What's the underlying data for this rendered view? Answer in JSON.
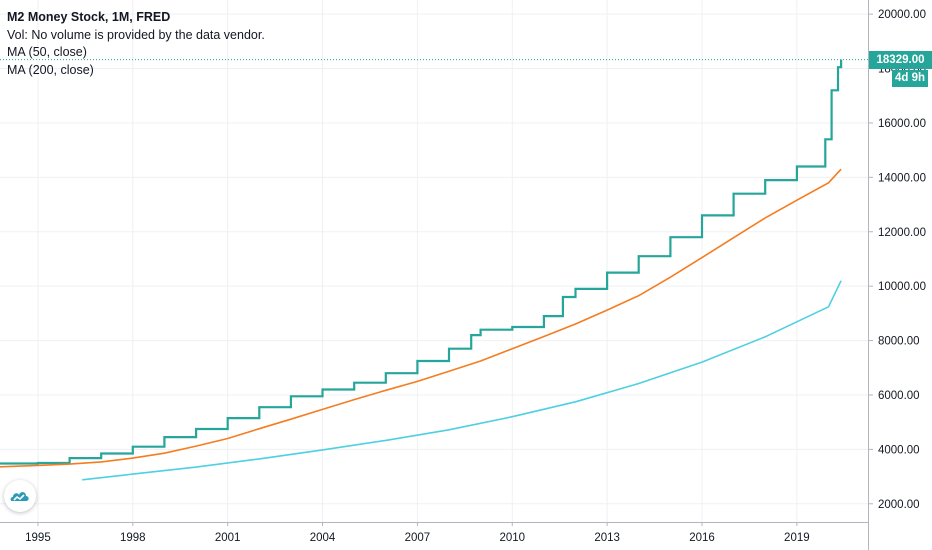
{
  "legend": {
    "title": "M2 Money Stock, 1M, FRED",
    "vol_note": "Vol: No volume is provided by the data vendor.",
    "ma50_label": "MA (50, close)",
    "ma200_label": "MA (200, close)"
  },
  "price_badge": {
    "value": "18329.00",
    "countdown": "4d 9h"
  },
  "colors": {
    "price": "#26a69a",
    "ma50": "#f57c1f",
    "ma200": "#4dd0e1",
    "grid": "#eef0f3",
    "axis_text": "#131722"
  },
  "logo_icon": "tradingview-cloud-icon",
  "chart_data": {
    "type": "line",
    "title": "M2 Money Stock, 1M, FRED",
    "xlabel": "",
    "ylabel": "",
    "x_ticks": [
      "1995",
      "1998",
      "2001",
      "2004",
      "2007",
      "2010",
      "2013",
      "2016",
      "2019"
    ],
    "y_ticks": [
      "2000.00",
      "4000.00",
      "6000.00",
      "8000.00",
      "10000.00",
      "12000.00",
      "14000.00",
      "16000.00",
      "18000.00",
      "20000.00"
    ],
    "xlim": [
      1993.8,
      2021.25
    ],
    "ylim": [
      1330,
      20520
    ],
    "last_value": 18329.0,
    "grid": true,
    "series": [
      {
        "name": "M2 Money Stock",
        "x": [
          1993.8,
          1995,
          1996,
          1997,
          1998,
          1999,
          2000,
          2001,
          2002,
          2003,
          2004,
          2005,
          2006,
          2007,
          2008,
          2008.7,
          2009,
          2010,
          2011,
          2011.6,
          2012,
          2013,
          2014,
          2015,
          2016,
          2017,
          2018,
          2019,
          2019.9,
          2020.1,
          2020.3,
          2020.4
        ],
        "values": [
          3480,
          3500,
          3680,
          3850,
          4100,
          4450,
          4750,
          5150,
          5550,
          5950,
          6200,
          6450,
          6800,
          7250,
          7700,
          8200,
          8400,
          8500,
          8900,
          9600,
          9900,
          10500,
          11100,
          11800,
          12600,
          13400,
          13900,
          14400,
          15400,
          17200,
          18050,
          18329
        ]
      },
      {
        "name": "MA (50, close)",
        "x": [
          1993.8,
          1995,
          1996,
          1997,
          1998,
          1999,
          2000,
          2001,
          2002,
          2003,
          2004,
          2005,
          2006,
          2007,
          2008,
          2009,
          2010,
          2011,
          2012,
          2013,
          2014,
          2015,
          2016,
          2017,
          2018,
          2019,
          2020,
          2020.4
        ],
        "values": [
          3360,
          3410,
          3460,
          3540,
          3680,
          3860,
          4120,
          4400,
          4760,
          5110,
          5470,
          5830,
          6170,
          6500,
          6870,
          7250,
          7700,
          8150,
          8610,
          9120,
          9650,
          10330,
          11050,
          11780,
          12510,
          13160,
          13800,
          14300
        ]
      },
      {
        "name": "MA (200, close)",
        "x": [
          1996.4,
          1998,
          2000,
          2002,
          2004,
          2006,
          2008,
          2010,
          2012,
          2014,
          2016,
          2018,
          2020,
          2020.4
        ],
        "values": [
          2880,
          3090,
          3350,
          3650,
          3980,
          4330,
          4720,
          5200,
          5750,
          6420,
          7210,
          8140,
          9240,
          10200
        ]
      }
    ]
  }
}
